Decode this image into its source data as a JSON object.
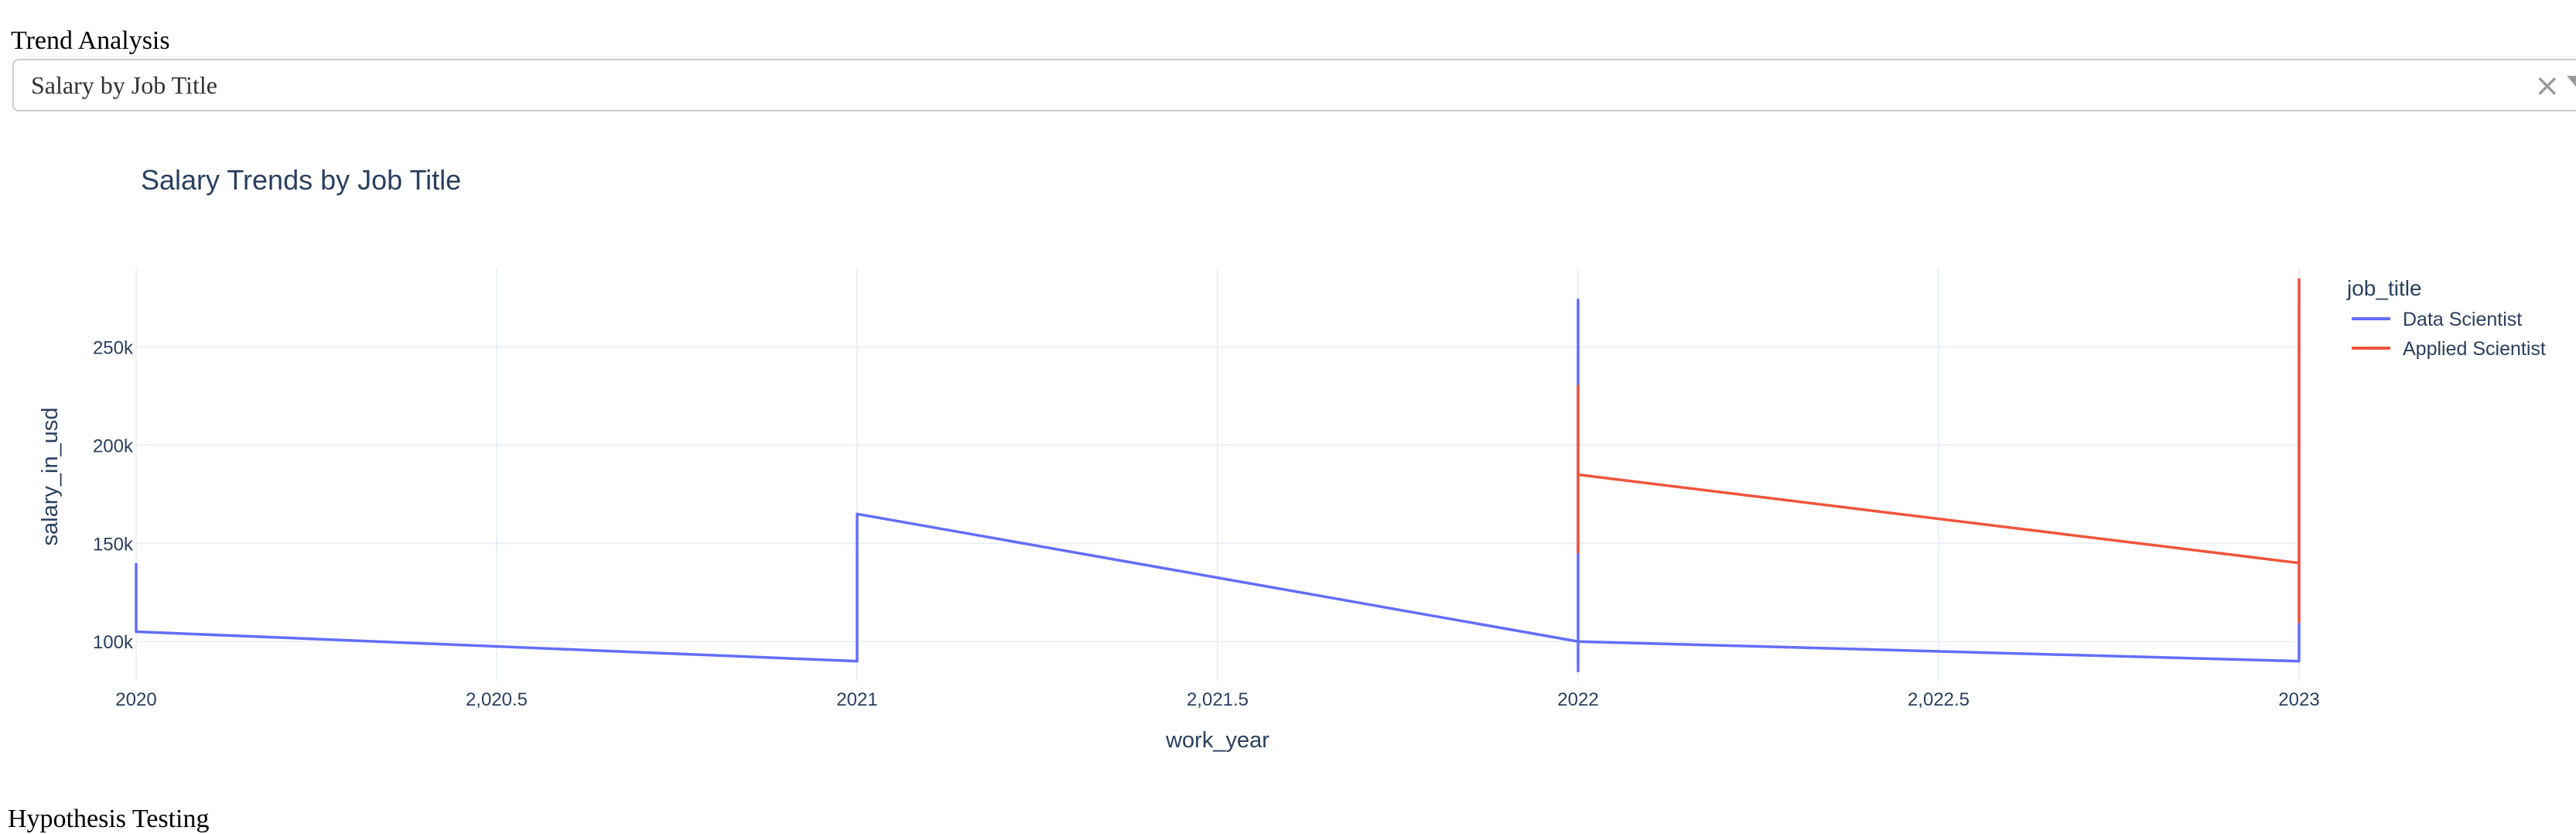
{
  "section_label": "Trend Analysis",
  "dropdown": {
    "value": "Salary by Job Title",
    "clear_icon": "×",
    "caret_icon": "chevron-down-icon"
  },
  "bottom_text": "Hypothesis Testing",
  "chart_data": {
    "type": "line",
    "title": "Salary Trends by Job Title",
    "xlabel": "work_year",
    "ylabel": "salary_in_usd",
    "xlim": [
      2020,
      2023
    ],
    "ylim": [
      80000,
      290000
    ],
    "xticks": [
      2020,
      2020.5,
      2021,
      2021.5,
      2022,
      2022.5,
      2023
    ],
    "xtick_labels": [
      "2020",
      "2,020.5",
      "2021",
      "2,021.5",
      "2022",
      "2,022.5",
      "2023"
    ],
    "yticks": [
      100000,
      150000,
      200000,
      250000
    ],
    "ytick_labels": [
      "100k",
      "150k",
      "200k",
      "250k"
    ],
    "grid": true,
    "legend_title": "job_title",
    "legend_position": "top-right",
    "series": [
      {
        "name": "Data Scientist",
        "color": "#636efa",
        "x": [
          2020,
          2020,
          2020,
          2020,
          2020,
          2020,
          2020,
          2021,
          2021,
          2021,
          2021,
          2021,
          2021,
          2021,
          2022,
          2022,
          2022,
          2022,
          2022,
          2022,
          2022,
          2022,
          2022,
          2022,
          2022,
          2022,
          2022,
          2022,
          2023,
          2023,
          2023,
          2023,
          2023,
          2023,
          2023,
          2023,
          2023,
          2023,
          2023,
          2023,
          2023,
          2023,
          2023,
          2023
        ],
        "y": [
          140000,
          105000,
          118000,
          120000,
          119000,
          120000,
          105000,
          90000,
          160000,
          150000,
          130000,
          115000,
          110000,
          165000,
          100000,
          105000,
          165000,
          274000,
          100000,
          85000,
          130000,
          110000,
          100000,
          155000,
          170000,
          180000,
          150000,
          100000,
          90000,
          170000,
          137000,
          148000,
          110000,
          130000,
          145000,
          237000,
          273000,
          182000,
          200000,
          225000,
          150000,
          160000,
          130000,
          158000
        ]
      },
      {
        "name": "Applied Scientist",
        "color": "#ef553b",
        "x": [
          2022,
          2022,
          2022,
          2023,
          2023,
          2023,
          2023
        ],
        "y": [
          145000,
          230000,
          185000,
          140000,
          110000,
          170000,
          285000
        ]
      }
    ]
  }
}
